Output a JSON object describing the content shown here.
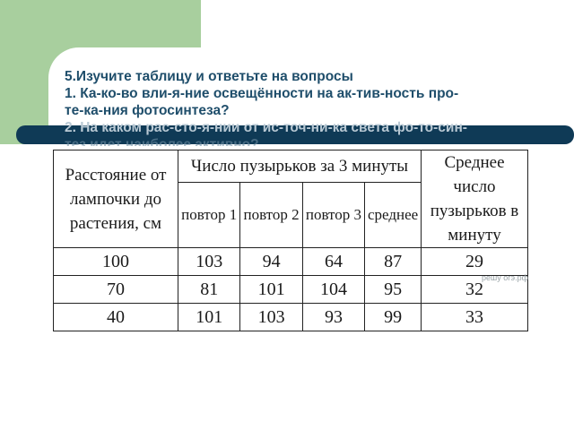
{
  "question": {
    "title": "5.Изучите таблицу и ответьте на вопросы",
    "q1_line1": "1. Ка-ко-во вли-я-ние освещённости на ак-тив-ность про-",
    "q1_line2": "те-ка-ния фотосинтеза?",
    "q2_line1": "2. На каком рас-сто-я-нии от ис-точ-ни-ка света фо-то-син-",
    "q2_line2": "тез идет наиболее активно?"
  },
  "table": {
    "col_distance": "Расстояние от лампочки до растения, см",
    "group_header": "Число пузырьков за 3 минуты",
    "col_average_per_minute": "Среднее число пузырьков в минуту",
    "sub_headers": [
      "повтор 1",
      "повтор 2",
      "повтор 3",
      "среднее"
    ],
    "rows": [
      {
        "distance": "100",
        "r1": "103",
        "r2": "94",
        "r3": "64",
        "avg": "87",
        "per_min": "29"
      },
      {
        "distance": "70",
        "r1": "81",
        "r2": "101",
        "r3": "104",
        "avg": "95",
        "per_min": "32"
      },
      {
        "distance": "40",
        "r1": "101",
        "r2": "103",
        "r3": "93",
        "avg": "99",
        "per_min": "33"
      }
    ]
  },
  "watermark": "решу огэ.рф",
  "colors": {
    "green_band": "#a8cf9e",
    "dark_bar": "#0f3a56",
    "question_text": "#1f4e6b"
  }
}
